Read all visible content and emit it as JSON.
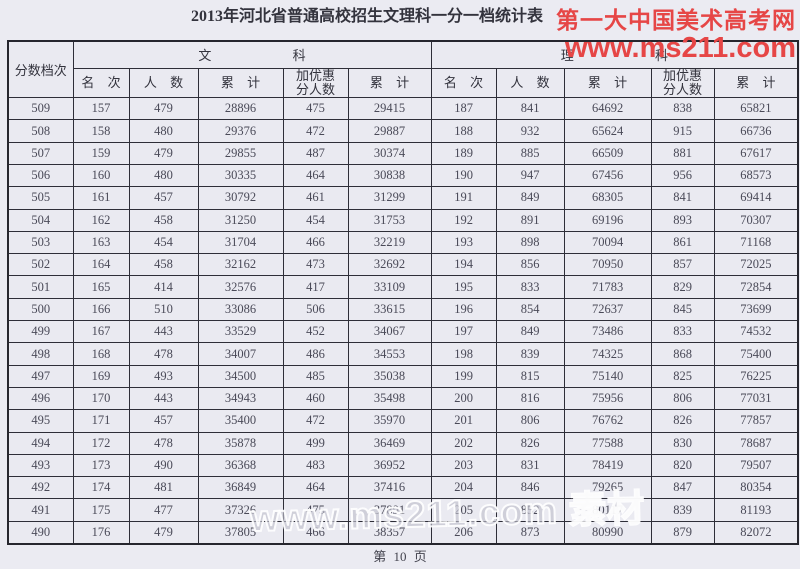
{
  "title": "2013年河北省普通高校招生文理科一分一档统计表",
  "red_watermark": {
    "site_name": "第一大中国美术高考网",
    "site_url": "www.ms211.com",
    "color": "#e64646"
  },
  "center_watermark": "www.ms211.com 素材",
  "footer": {
    "page_label": "第 10 页"
  },
  "table": {
    "corner_header": "分数档次",
    "group_headers": {
      "liberal_arts": "文 科",
      "science": "理 科"
    },
    "sub_headers": [
      "名 次",
      "人 数",
      "累 计",
      "加优惠\n分人数",
      "累 计"
    ],
    "rows": [
      [
        "509",
        "157",
        "479",
        "28896",
        "475",
        "29415",
        "187",
        "841",
        "64692",
        "838",
        "65821"
      ],
      [
        "508",
        "158",
        "480",
        "29376",
        "472",
        "29887",
        "188",
        "932",
        "65624",
        "915",
        "66736"
      ],
      [
        "507",
        "159",
        "479",
        "29855",
        "487",
        "30374",
        "189",
        "885",
        "66509",
        "881",
        "67617"
      ],
      [
        "506",
        "160",
        "480",
        "30335",
        "464",
        "30838",
        "190",
        "947",
        "67456",
        "956",
        "68573"
      ],
      [
        "505",
        "161",
        "457",
        "30792",
        "461",
        "31299",
        "191",
        "849",
        "68305",
        "841",
        "69414"
      ],
      [
        "504",
        "162",
        "458",
        "31250",
        "454",
        "31753",
        "192",
        "891",
        "69196",
        "893",
        "70307"
      ],
      [
        "503",
        "163",
        "454",
        "31704",
        "466",
        "32219",
        "193",
        "898",
        "70094",
        "861",
        "71168"
      ],
      [
        "502",
        "164",
        "458",
        "32162",
        "473",
        "32692",
        "194",
        "856",
        "70950",
        "857",
        "72025"
      ],
      [
        "501",
        "165",
        "414",
        "32576",
        "417",
        "33109",
        "195",
        "833",
        "71783",
        "829",
        "72854"
      ],
      [
        "500",
        "166",
        "510",
        "33086",
        "506",
        "33615",
        "196",
        "854",
        "72637",
        "845",
        "73699"
      ],
      [
        "499",
        "167",
        "443",
        "33529",
        "452",
        "34067",
        "197",
        "849",
        "73486",
        "833",
        "74532"
      ],
      [
        "498",
        "168",
        "478",
        "34007",
        "486",
        "34553",
        "198",
        "839",
        "74325",
        "868",
        "75400"
      ],
      [
        "497",
        "169",
        "493",
        "34500",
        "485",
        "35038",
        "199",
        "815",
        "75140",
        "825",
        "76225"
      ],
      [
        "496",
        "170",
        "443",
        "34943",
        "460",
        "35498",
        "200",
        "816",
        "75956",
        "806",
        "77031"
      ],
      [
        "495",
        "171",
        "457",
        "35400",
        "472",
        "35970",
        "201",
        "806",
        "76762",
        "826",
        "77857"
      ],
      [
        "494",
        "172",
        "478",
        "35878",
        "499",
        "36469",
        "202",
        "826",
        "77588",
        "830",
        "78687"
      ],
      [
        "493",
        "173",
        "490",
        "36368",
        "483",
        "36952",
        "203",
        "831",
        "78419",
        "820",
        "79507"
      ],
      [
        "492",
        "174",
        "481",
        "36849",
        "464",
        "37416",
        "204",
        "846",
        "79265",
        "847",
        "80354"
      ],
      [
        "491",
        "175",
        "477",
        "37326",
        "475",
        "37891",
        "205",
        "852",
        "80117",
        "839",
        "81193"
      ],
      [
        "490",
        "176",
        "479",
        "37805",
        "466",
        "38357",
        "206",
        "873",
        "80990",
        "879",
        "82072"
      ]
    ]
  }
}
